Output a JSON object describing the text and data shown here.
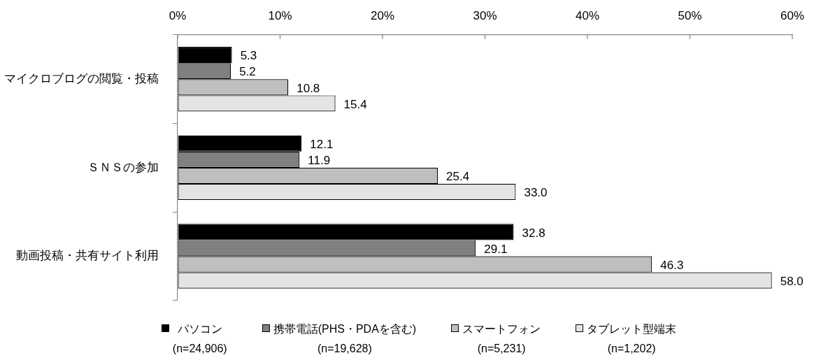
{
  "chart_data": {
    "type": "bar",
    "orientation": "horizontal",
    "categories": [
      "マイクロブログの閲覧・投稿",
      "ＳＮＳの参加",
      "動画投稿・共有サイト利用"
    ],
    "series": [
      {
        "name": "パソコン\n(n=24,906)",
        "color": "#000000",
        "values": [
          5.3,
          12.1,
          32.8
        ],
        "value_labels": [
          "5.3",
          "12.1",
          "32.8"
        ]
      },
      {
        "name": "携帯電話(PHS・PDAを含む)\n(n=19,628)",
        "color": "#808080",
        "values": [
          5.2,
          11.9,
          29.1
        ],
        "value_labels": [
          "5.2",
          "11.9",
          "29.1"
        ]
      },
      {
        "name": "スマートフォン\n(n=5,231)",
        "color": "#bfbfbf",
        "values": [
          10.8,
          25.4,
          46.3
        ],
        "value_labels": [
          "10.8",
          "25.4",
          "46.3"
        ]
      },
      {
        "name": "タブレット型端末\n(n=1,202)",
        "color": "#e4e4e4",
        "values": [
          15.4,
          33.0,
          58.0
        ],
        "value_labels": [
          "15.4",
          "33.0",
          "58.0"
        ]
      }
    ],
    "xlim": [
      0,
      60
    ],
    "xticks": [
      {
        "value": 0,
        "label": "0%"
      },
      {
        "value": 10,
        "label": "10%"
      },
      {
        "value": 20,
        "label": "20%"
      },
      {
        "value": 30,
        "label": "30%"
      },
      {
        "value": 40,
        "label": "40%"
      },
      {
        "value": 50,
        "label": "50%"
      },
      {
        "value": 60,
        "label": "60%"
      }
    ],
    "grid": false,
    "legend": "bottom"
  }
}
